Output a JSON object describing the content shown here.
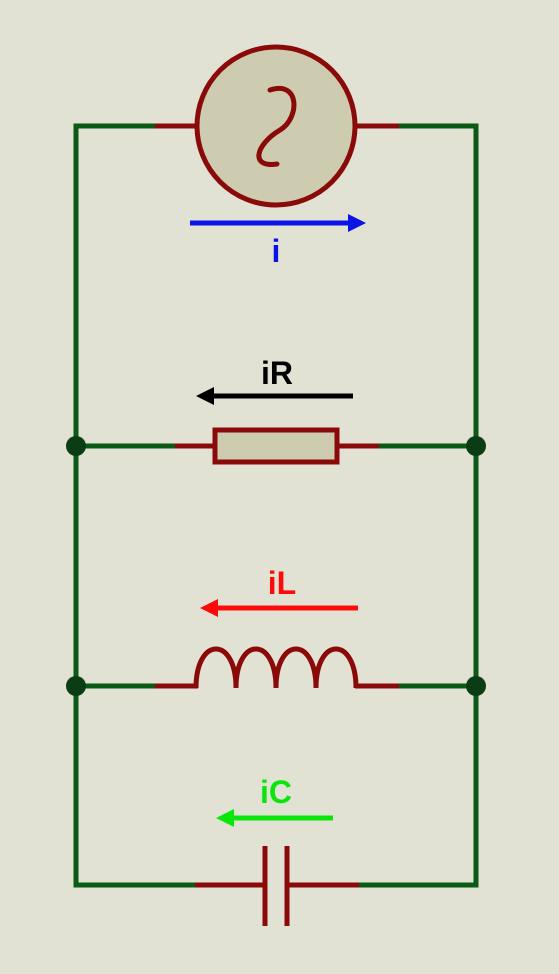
{
  "labels": {
    "source_current": "i",
    "resistor_current": "iR",
    "inductor_current": "iL",
    "capacitor_current": "iC"
  },
  "colors": {
    "background": "#e2e2d4",
    "wire": "#0a5a14",
    "node": "#0a3d14",
    "component_outline": "#8a0a0a",
    "component_fill": "#cdcbb0",
    "source_current": "#0a14e6",
    "resistor_current": "#000000",
    "inductor_current": "#ff0a0a",
    "capacitor_current": "#0ae60a"
  },
  "icons": {
    "source": "ac-voltage-source-icon",
    "resistor": "resistor-icon",
    "inductor": "inductor-icon",
    "capacitor": "capacitor-icon"
  }
}
